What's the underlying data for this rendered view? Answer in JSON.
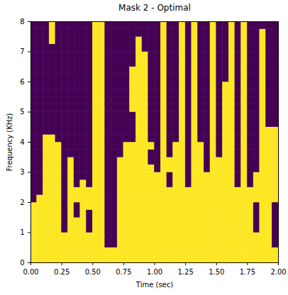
{
  "chart_data": {
    "type": "heatmap",
    "title": "Mask 2 - Optimal",
    "x_label": "Time (sec)",
    "y_label": "Frequency (KHz)",
    "colors": [
      "#440154",
      "#fde725"
    ],
    "x_bins": [
      0,
      0.05,
      0.1,
      0.15,
      0.2,
      0.25,
      0.3,
      0.35,
      0.4,
      0.45,
      0.5,
      0.55,
      0.6,
      0.65,
      0.7,
      0.75,
      0.8,
      0.85,
      0.9,
      0.95,
      1,
      1.05,
      1.1,
      1.15,
      1.2,
      1.25,
      1.3,
      1.35,
      1.4,
      1.45,
      1.5,
      1.55,
      1.6,
      1.65,
      1.7,
      1.75,
      1.8,
      1.85,
      1.9,
      1.95,
      2
    ],
    "y_bins": [
      0,
      0.25,
      0.5,
      0.75,
      1,
      1.25,
      1.5,
      1.75,
      2,
      2.25,
      2.5,
      2.75,
      3,
      3.25,
      3.5,
      3.75,
      4,
      4.25,
      4.5,
      4.75,
      5,
      5.25,
      5.5,
      5.75,
      6,
      6.25,
      6.5,
      6.75,
      7,
      7.25,
      7.5,
      7.75,
      8
    ],
    "xlim": [
      0,
      2
    ],
    "ylim": [
      0,
      8
    ],
    "xticks": [
      {
        "value": 0,
        "label": "0.00"
      },
      {
        "value": 0.25,
        "label": "0.25"
      },
      {
        "value": 0.5,
        "label": "0.50"
      },
      {
        "value": 0.75,
        "label": "0.75"
      },
      {
        "value": 1,
        "label": "1.00"
      },
      {
        "value": 1.25,
        "label": "1.25"
      },
      {
        "value": 1.5,
        "label": "1.50"
      },
      {
        "value": 1.75,
        "label": "1.75"
      },
      {
        "value": 2,
        "label": "2.00"
      }
    ],
    "yticks": [
      0,
      1,
      2,
      3,
      4,
      5,
      6,
      7,
      8
    ],
    "z": [
      [
        1,
        1,
        1,
        1,
        1,
        1,
        1,
        1,
        1,
        1,
        1,
        1,
        1,
        1,
        1,
        1,
        1,
        1,
        1,
        1,
        1,
        1,
        1,
        1,
        1,
        1,
        1,
        1,
        1,
        1,
        1,
        1,
        1,
        1,
        1,
        1,
        1,
        1,
        1,
        1
      ],
      [
        1,
        1,
        1,
        1,
        1,
        1,
        1,
        1,
        1,
        1,
        1,
        1,
        1,
        1,
        1,
        1,
        1,
        1,
        1,
        1,
        1,
        1,
        1,
        1,
        1,
        1,
        1,
        1,
        1,
        1,
        1,
        1,
        1,
        1,
        1,
        1,
        1,
        1,
        1,
        1
      ],
      [
        1,
        1,
        1,
        1,
        1,
        1,
        1,
        1,
        1,
        1,
        1,
        1,
        0,
        0,
        1,
        1,
        1,
        1,
        1,
        1,
        1,
        1,
        1,
        1,
        1,
        1,
        1,
        1,
        1,
        1,
        1,
        1,
        1,
        1,
        1,
        1,
        1,
        1,
        1,
        0
      ],
      [
        1,
        1,
        1,
        1,
        1,
        1,
        1,
        1,
        1,
        1,
        1,
        1,
        0,
        0,
        1,
        1,
        1,
        1,
        1,
        1,
        1,
        1,
        1,
        1,
        1,
        1,
        1,
        1,
        1,
        1,
        1,
        1,
        1,
        1,
        1,
        1,
        1,
        1,
        1,
        0
      ],
      [
        1,
        1,
        1,
        1,
        1,
        0,
        1,
        1,
        1,
        0,
        1,
        1,
        0,
        0,
        1,
        1,
        1,
        1,
        1,
        1,
        1,
        1,
        1,
        1,
        1,
        1,
        1,
        1,
        1,
        1,
        1,
        1,
        1,
        1,
        1,
        1,
        0,
        1,
        1,
        0
      ],
      [
        1,
        1,
        1,
        1,
        1,
        0,
        1,
        1,
        1,
        0,
        1,
        1,
        0,
        0,
        1,
        1,
        1,
        1,
        1,
        1,
        1,
        1,
        1,
        1,
        1,
        1,
        1,
        1,
        1,
        1,
        1,
        1,
        1,
        1,
        1,
        1,
        0,
        1,
        1,
        0
      ],
      [
        1,
        1,
        1,
        1,
        1,
        0,
        1,
        0,
        1,
        0,
        1,
        1,
        0,
        0,
        1,
        1,
        1,
        1,
        1,
        1,
        1,
        1,
        1,
        1,
        1,
        1,
        1,
        1,
        1,
        1,
        1,
        1,
        1,
        1,
        1,
        1,
        0,
        1,
        1,
        0
      ],
      [
        1,
        1,
        1,
        1,
        1,
        0,
        1,
        0,
        1,
        1,
        1,
        1,
        0,
        0,
        1,
        1,
        1,
        1,
        1,
        1,
        1,
        1,
        1,
        1,
        1,
        1,
        1,
        1,
        1,
        1,
        1,
        1,
        1,
        1,
        1,
        1,
        0,
        1,
        1,
        0
      ],
      [
        0,
        1,
        1,
        1,
        1,
        0,
        1,
        1,
        1,
        1,
        1,
        1,
        0,
        0,
        1,
        1,
        1,
        1,
        1,
        1,
        1,
        1,
        1,
        1,
        1,
        1,
        1,
        1,
        1,
        1,
        1,
        1,
        1,
        1,
        1,
        1,
        1,
        1,
        1,
        1
      ],
      [
        0,
        0,
        1,
        1,
        1,
        0,
        1,
        1,
        1,
        1,
        1,
        1,
        0,
        0,
        1,
        1,
        1,
        1,
        1,
        1,
        1,
        1,
        1,
        1,
        1,
        1,
        1,
        1,
        1,
        1,
        1,
        1,
        1,
        1,
        1,
        1,
        1,
        1,
        1,
        1
      ],
      [
        0,
        0,
        1,
        1,
        1,
        0,
        1,
        0,
        1,
        0,
        1,
        1,
        0,
        0,
        1,
        1,
        1,
        1,
        1,
        1,
        1,
        1,
        0,
        1,
        1,
        0,
        1,
        1,
        1,
        1,
        1,
        1,
        1,
        0,
        1,
        0,
        1,
        1,
        1,
        1
      ],
      [
        0,
        0,
        1,
        1,
        1,
        0,
        1,
        0,
        0,
        0,
        1,
        1,
        0,
        0,
        1,
        1,
        1,
        1,
        1,
        1,
        1,
        1,
        0,
        1,
        1,
        0,
        1,
        1,
        1,
        1,
        1,
        1,
        1,
        0,
        1,
        0,
        1,
        1,
        1,
        1
      ],
      [
        0,
        0,
        1,
        1,
        1,
        0,
        1,
        0,
        0,
        0,
        1,
        1,
        0,
        0,
        1,
        1,
        1,
        1,
        1,
        1,
        0,
        1,
        1,
        1,
        1,
        0,
        1,
        1,
        0,
        1,
        1,
        1,
        1,
        0,
        1,
        0,
        0,
        1,
        1,
        1
      ],
      [
        0,
        0,
        1,
        1,
        1,
        0,
        1,
        0,
        0,
        0,
        1,
        1,
        0,
        0,
        1,
        1,
        1,
        1,
        1,
        0,
        0,
        1,
        1,
        1,
        1,
        0,
        1,
        1,
        0,
        1,
        1,
        1,
        1,
        0,
        1,
        0,
        0,
        1,
        1,
        1
      ],
      [
        0,
        0,
        1,
        1,
        1,
        0,
        0,
        0,
        0,
        0,
        1,
        1,
        0,
        0,
        0,
        1,
        1,
        1,
        1,
        0,
        0,
        1,
        0,
        1,
        1,
        0,
        1,
        1,
        0,
        1,
        0,
        1,
        1,
        0,
        1,
        0,
        0,
        1,
        1,
        1
      ],
      [
        0,
        0,
        1,
        1,
        1,
        0,
        0,
        0,
        0,
        0,
        1,
        1,
        0,
        0,
        0,
        1,
        1,
        1,
        1,
        1,
        0,
        1,
        0,
        1,
        1,
        0,
        1,
        1,
        0,
        1,
        0,
        1,
        1,
        0,
        1,
        0,
        0,
        1,
        1,
        1
      ],
      [
        0,
        0,
        1,
        1,
        0,
        0,
        0,
        0,
        0,
        0,
        1,
        1,
        0,
        0,
        0,
        0,
        0,
        1,
        1,
        0,
        0,
        1,
        0,
        0,
        1,
        0,
        1,
        0,
        0,
        1,
        0,
        1,
        1,
        0,
        1,
        0,
        0,
        1,
        1,
        1
      ],
      [
        0,
        0,
        0,
        0,
        0,
        0,
        0,
        0,
        0,
        0,
        1,
        1,
        0,
        0,
        0,
        0,
        0,
        1,
        1,
        0,
        0,
        1,
        0,
        0,
        1,
        0,
        1,
        0,
        0,
        1,
        0,
        1,
        1,
        0,
        1,
        0,
        0,
        1,
        1,
        1
      ],
      [
        0,
        0,
        0,
        0,
        0,
        0,
        0,
        0,
        0,
        0,
        1,
        1,
        0,
        0,
        0,
        0,
        0,
        1,
        1,
        0,
        0,
        1,
        0,
        0,
        1,
        0,
        1,
        0,
        0,
        1,
        0,
        1,
        1,
        0,
        1,
        0,
        0,
        1,
        0,
        0
      ],
      [
        0,
        0,
        0,
        0,
        0,
        0,
        0,
        0,
        0,
        0,
        1,
        1,
        0,
        0,
        0,
        0,
        0,
        1,
        1,
        0,
        0,
        1,
        0,
        0,
        1,
        0,
        1,
        0,
        0,
        1,
        0,
        1,
        1,
        0,
        1,
        0,
        0,
        1,
        0,
        0
      ],
      [
        0,
        0,
        0,
        0,
        0,
        0,
        0,
        0,
        0,
        0,
        1,
        1,
        0,
        0,
        0,
        0,
        1,
        1,
        1,
        0,
        0,
        1,
        0,
        0,
        1,
        0,
        1,
        0,
        0,
        1,
        0,
        1,
        1,
        0,
        1,
        0,
        0,
        1,
        0,
        0
      ],
      [
        0,
        0,
        0,
        0,
        0,
        0,
        0,
        0,
        0,
        0,
        1,
        1,
        0,
        0,
        0,
        0,
        1,
        1,
        1,
        0,
        0,
        1,
        0,
        0,
        1,
        0,
        1,
        0,
        0,
        1,
        0,
        1,
        1,
        0,
        1,
        0,
        0,
        1,
        0,
        0
      ],
      [
        0,
        0,
        0,
        0,
        0,
        0,
        0,
        0,
        0,
        0,
        1,
        1,
        0,
        0,
        0,
        0,
        1,
        1,
        1,
        0,
        0,
        1,
        0,
        0,
        1,
        0,
        1,
        0,
        0,
        1,
        0,
        1,
        1,
        0,
        1,
        0,
        0,
        1,
        0,
        0
      ],
      [
        0,
        0,
        0,
        0,
        0,
        0,
        0,
        0,
        0,
        0,
        1,
        1,
        0,
        0,
        0,
        0,
        1,
        1,
        1,
        0,
        0,
        1,
        0,
        0,
        1,
        0,
        1,
        0,
        0,
        1,
        0,
        1,
        1,
        0,
        1,
        0,
        0,
        1,
        0,
        0
      ],
      [
        0,
        0,
        0,
        0,
        0,
        0,
        0,
        0,
        0,
        0,
        1,
        1,
        0,
        0,
        0,
        0,
        1,
        1,
        1,
        0,
        0,
        1,
        0,
        0,
        1,
        0,
        1,
        0,
        0,
        1,
        0,
        0,
        1,
        0,
        1,
        0,
        0,
        1,
        0,
        0
      ],
      [
        0,
        0,
        0,
        0,
        0,
        0,
        0,
        0,
        0,
        0,
        1,
        1,
        0,
        0,
        0,
        0,
        1,
        1,
        1,
        0,
        0,
        1,
        0,
        0,
        1,
        0,
        1,
        0,
        0,
        1,
        0,
        0,
        1,
        0,
        1,
        0,
        0,
        1,
        0,
        0
      ],
      [
        0,
        0,
        0,
        0,
        0,
        0,
        0,
        0,
        0,
        0,
        1,
        1,
        0,
        0,
        0,
        0,
        0,
        1,
        1,
        0,
        0,
        1,
        0,
        0,
        1,
        0,
        1,
        0,
        0,
        1,
        0,
        0,
        1,
        0,
        1,
        0,
        0,
        1,
        0,
        0
      ],
      [
        0,
        0,
        0,
        0,
        0,
        0,
        0,
        0,
        0,
        0,
        1,
        1,
        0,
        0,
        0,
        0,
        0,
        1,
        1,
        0,
        0,
        1,
        0,
        0,
        1,
        0,
        1,
        0,
        0,
        1,
        0,
        0,
        1,
        0,
        1,
        0,
        0,
        1,
        0,
        0
      ],
      [
        0,
        0,
        0,
        0,
        0,
        0,
        0,
        0,
        0,
        0,
        1,
        1,
        0,
        0,
        0,
        0,
        0,
        1,
        0,
        0,
        0,
        1,
        0,
        0,
        1,
        0,
        1,
        0,
        0,
        1,
        0,
        0,
        1,
        0,
        1,
        0,
        0,
        1,
        0,
        0
      ],
      [
        0,
        0,
        0,
        1,
        0,
        0,
        0,
        0,
        0,
        0,
        1,
        1,
        0,
        0,
        0,
        0,
        0,
        1,
        0,
        0,
        0,
        1,
        0,
        0,
        1,
        0,
        1,
        0,
        0,
        1,
        0,
        0,
        1,
        0,
        1,
        0,
        0,
        1,
        0,
        0
      ],
      [
        0,
        0,
        0,
        1,
        0,
        0,
        0,
        0,
        0,
        0,
        1,
        1,
        0,
        0,
        0,
        0,
        0,
        0,
        0,
        0,
        0,
        1,
        0,
        0,
        1,
        0,
        1,
        0,
        0,
        1,
        0,
        0,
        1,
        0,
        1,
        0,
        0,
        1,
        0,
        0
      ],
      [
        0,
        0,
        0,
        1,
        0,
        0,
        0,
        0,
        0,
        0,
        1,
        1,
        0,
        0,
        0,
        0,
        0,
        0,
        0,
        0,
        0,
        1,
        0,
        0,
        1,
        0,
        1,
        0,
        0,
        1,
        0,
        0,
        1,
        0,
        1,
        0,
        0,
        0,
        0,
        0
      ]
    ]
  }
}
